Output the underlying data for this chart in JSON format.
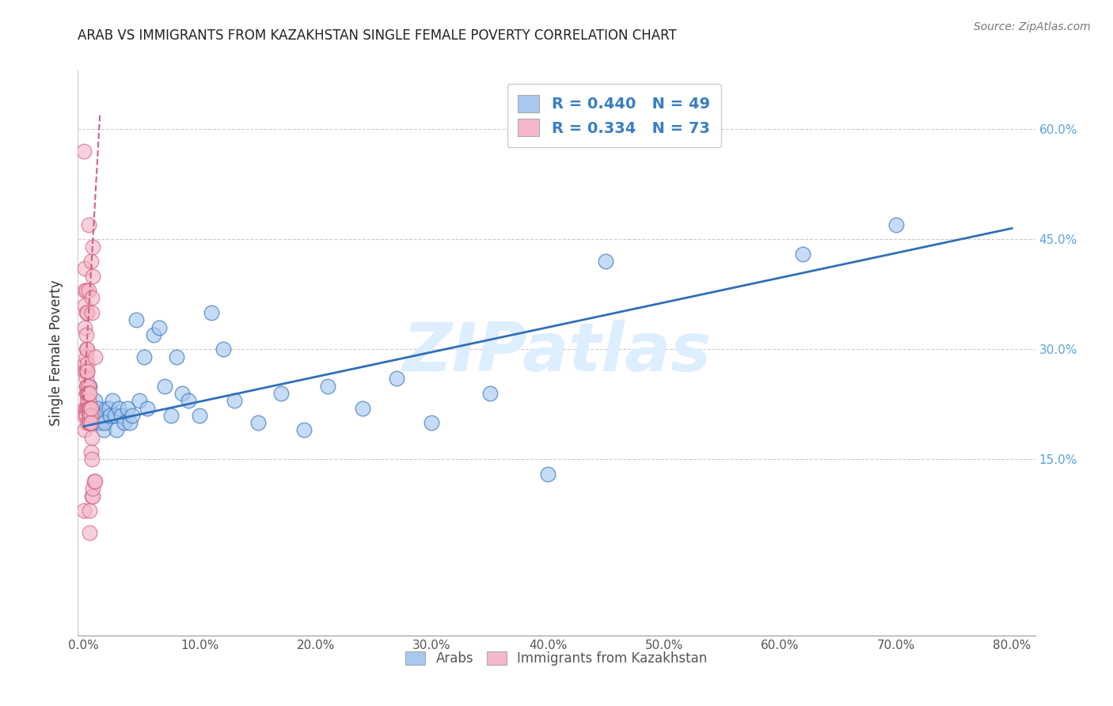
{
  "title": "ARAB VS IMMIGRANTS FROM KAZAKHSTAN SINGLE FEMALE POVERTY CORRELATION CHART",
  "source": "Source: ZipAtlas.com",
  "ylabel": "Single Female Poverty",
  "xlabel_ticks": [
    "0.0%",
    "10.0%",
    "20.0%",
    "30.0%",
    "40.0%",
    "50.0%",
    "60.0%",
    "70.0%",
    "80.0%"
  ],
  "ylabel_ticks": [
    "15.0%",
    "30.0%",
    "45.0%",
    "60.0%"
  ],
  "xlim": [
    -0.005,
    0.82
  ],
  "ylim": [
    -0.09,
    0.68
  ],
  "arab_color": "#a8c8f0",
  "kaz_color": "#f5b8ca",
  "arab_line_color": "#3070b8",
  "kaz_line_color": "#d06080",
  "watermark": "ZIPatlas",
  "watermark_color": "#ddeeff",
  "grid_color": "#cccccc",
  "arab_scatter_x": [
    0.005,
    0.007,
    0.008,
    0.01,
    0.012,
    0.013,
    0.015,
    0.016,
    0.017,
    0.018,
    0.02,
    0.022,
    0.023,
    0.025,
    0.027,
    0.028,
    0.03,
    0.032,
    0.035,
    0.038,
    0.04,
    0.042,
    0.045,
    0.048,
    0.052,
    0.055,
    0.06,
    0.065,
    0.07,
    0.075,
    0.08,
    0.085,
    0.09,
    0.1,
    0.11,
    0.12,
    0.13,
    0.15,
    0.17,
    0.19,
    0.21,
    0.24,
    0.27,
    0.3,
    0.35,
    0.4,
    0.45,
    0.62,
    0.7
  ],
  "arab_scatter_y": [
    0.25,
    0.22,
    0.2,
    0.23,
    0.22,
    0.2,
    0.2,
    0.21,
    0.19,
    0.2,
    0.22,
    0.22,
    0.21,
    0.23,
    0.21,
    0.19,
    0.22,
    0.21,
    0.2,
    0.22,
    0.2,
    0.21,
    0.34,
    0.23,
    0.29,
    0.22,
    0.32,
    0.33,
    0.25,
    0.21,
    0.29,
    0.24,
    0.23,
    0.21,
    0.35,
    0.3,
    0.23,
    0.2,
    0.24,
    0.19,
    0.25,
    0.22,
    0.26,
    0.2,
    0.24,
    0.13,
    0.42,
    0.43,
    0.47
  ],
  "kaz_scatter_x": [
    0.0,
    0.0,
    0.001,
    0.001,
    0.001,
    0.001,
    0.001,
    0.001,
    0.001,
    0.001,
    0.001,
    0.002,
    0.002,
    0.002,
    0.002,
    0.002,
    0.002,
    0.002,
    0.002,
    0.002,
    0.002,
    0.002,
    0.003,
    0.003,
    0.003,
    0.003,
    0.003,
    0.003,
    0.003,
    0.003,
    0.003,
    0.003,
    0.003,
    0.004,
    0.004,
    0.004,
    0.004,
    0.004,
    0.004,
    0.004,
    0.004,
    0.004,
    0.005,
    0.005,
    0.005,
    0.005,
    0.005,
    0.005,
    0.005,
    0.005,
    0.005,
    0.005,
    0.005,
    0.005,
    0.005,
    0.006,
    0.006,
    0.006,
    0.006,
    0.006,
    0.006,
    0.007,
    0.007,
    0.007,
    0.007,
    0.007,
    0.008,
    0.008,
    0.008,
    0.008,
    0.009,
    0.01,
    0.01
  ],
  "kaz_scatter_y": [
    0.57,
    0.08,
    0.36,
    0.33,
    0.28,
    0.38,
    0.41,
    0.21,
    0.27,
    0.22,
    0.19,
    0.35,
    0.32,
    0.27,
    0.24,
    0.22,
    0.3,
    0.25,
    0.21,
    0.38,
    0.29,
    0.26,
    0.3,
    0.27,
    0.24,
    0.22,
    0.2,
    0.28,
    0.25,
    0.23,
    0.27,
    0.24,
    0.35,
    0.25,
    0.22,
    0.24,
    0.22,
    0.23,
    0.38,
    0.22,
    0.24,
    0.47,
    0.24,
    0.22,
    0.22,
    0.21,
    0.22,
    0.21,
    0.21,
    0.2,
    0.2,
    0.2,
    0.2,
    0.05,
    0.08,
    0.22,
    0.21,
    0.2,
    0.22,
    0.16,
    0.42,
    0.15,
    0.18,
    0.1,
    0.37,
    0.35,
    0.44,
    0.4,
    0.1,
    0.11,
    0.12,
    0.12,
    0.29
  ]
}
